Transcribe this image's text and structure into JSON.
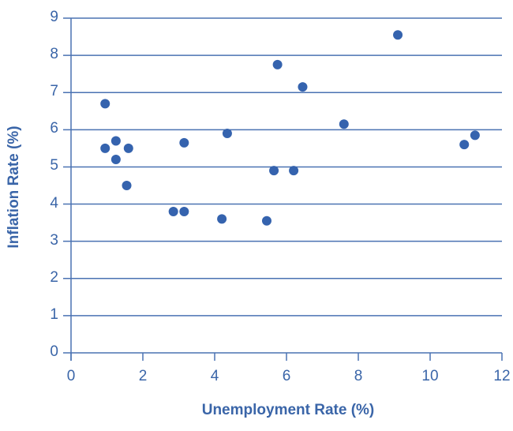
{
  "chart_data": {
    "type": "scatter",
    "title": "",
    "xlabel": "Unemployment Rate (%)",
    "ylabel": "Inflation Rate (%)",
    "xlim": [
      0,
      12
    ],
    "ylim": [
      0,
      9
    ],
    "xticks": [
      0,
      2,
      4,
      6,
      8,
      10,
      12
    ],
    "yticks": [
      0,
      1,
      2,
      3,
      4,
      5,
      6,
      7,
      8,
      9
    ],
    "grid": "horizontal",
    "legend": "none",
    "color": "#3563ae",
    "points": [
      {
        "x": 0.95,
        "y": 6.7
      },
      {
        "x": 0.95,
        "y": 5.5
      },
      {
        "x": 1.25,
        "y": 5.7
      },
      {
        "x": 1.25,
        "y": 5.2
      },
      {
        "x": 1.6,
        "y": 5.5
      },
      {
        "x": 1.55,
        "y": 4.5
      },
      {
        "x": 2.85,
        "y": 3.8
      },
      {
        "x": 3.15,
        "y": 3.8
      },
      {
        "x": 3.15,
        "y": 5.65
      },
      {
        "x": 4.2,
        "y": 3.6
      },
      {
        "x": 4.35,
        "y": 5.9
      },
      {
        "x": 5.45,
        "y": 3.55
      },
      {
        "x": 5.65,
        "y": 4.9
      },
      {
        "x": 5.75,
        "y": 7.75
      },
      {
        "x": 6.2,
        "y": 4.9
      },
      {
        "x": 6.45,
        "y": 7.15
      },
      {
        "x": 7.6,
        "y": 6.15
      },
      {
        "x": 9.1,
        "y": 8.55
      },
      {
        "x": 10.95,
        "y": 5.6
      },
      {
        "x": 11.25,
        "y": 5.85
      }
    ]
  }
}
